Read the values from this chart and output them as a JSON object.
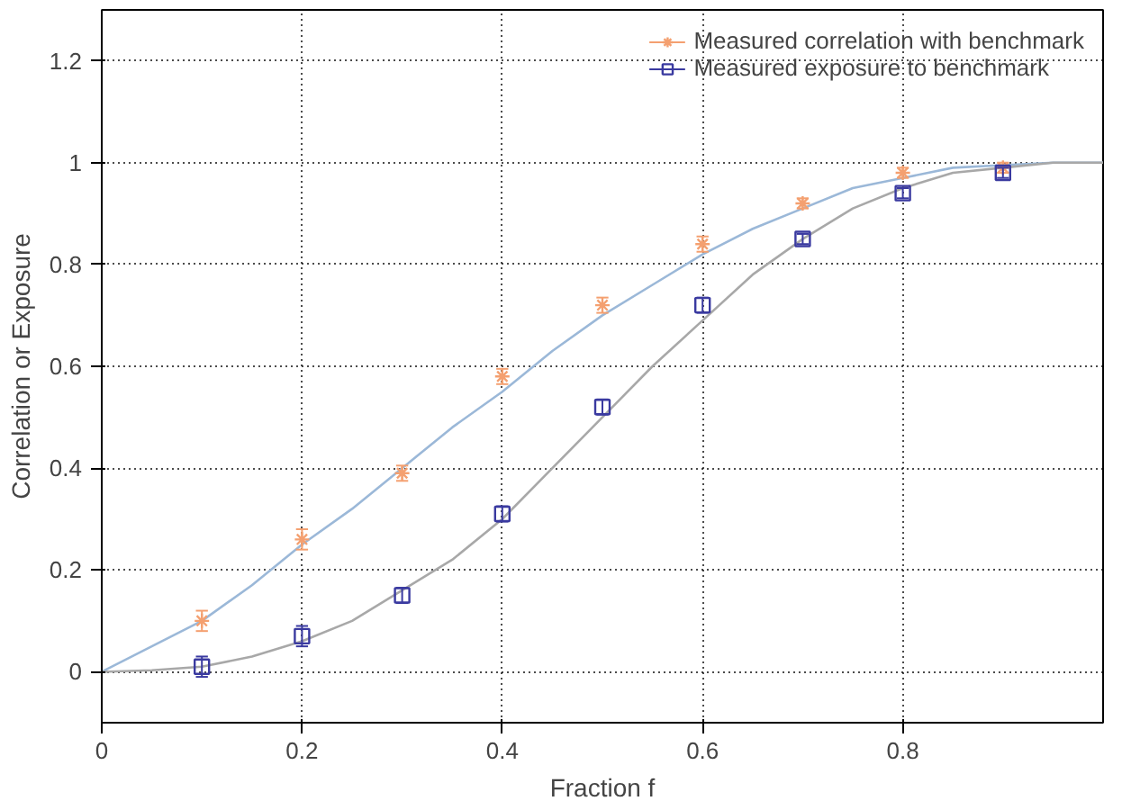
{
  "chart_data": {
    "type": "scatter",
    "xlabel": "Fraction f",
    "ylabel": "Correlation or Exposure",
    "xlim": [
      0,
      1.0
    ],
    "ylim": [
      -0.1,
      1.3
    ],
    "xticks": [
      0,
      0.2,
      0.4,
      0.6,
      0.8
    ],
    "yticks": [
      0,
      0.2,
      0.4,
      0.6,
      0.8,
      1,
      1.2
    ],
    "grid": true,
    "legend": "top right",
    "series": [
      {
        "type": "line",
        "color": "#9bb8d8",
        "x": [
          0,
          0.05,
          0.1,
          0.15,
          0.2,
          0.25,
          0.3,
          0.35,
          0.4,
          0.45,
          0.5,
          0.55,
          0.6,
          0.65,
          0.7,
          0.75,
          0.8,
          0.85,
          0.9,
          0.95,
          1.0
        ],
        "values": [
          0,
          0.05,
          0.1,
          0.17,
          0.25,
          0.32,
          0.4,
          0.48,
          0.55,
          0.63,
          0.7,
          0.76,
          0.82,
          0.87,
          0.91,
          0.95,
          0.97,
          0.99,
          0.995,
          1.0,
          1.0
        ]
      },
      {
        "type": "line",
        "color": "#a8a8a8",
        "x": [
          0,
          0.05,
          0.1,
          0.15,
          0.2,
          0.25,
          0.3,
          0.35,
          0.4,
          0.45,
          0.5,
          0.55,
          0.6,
          0.65,
          0.7,
          0.75,
          0.8,
          0.85,
          0.9,
          0.95,
          1.0
        ],
        "values": [
          0,
          0.003,
          0.01,
          0.03,
          0.06,
          0.1,
          0.16,
          0.22,
          0.3,
          0.4,
          0.5,
          0.6,
          0.69,
          0.78,
          0.85,
          0.91,
          0.95,
          0.98,
          0.99,
          1.0,
          1.0
        ]
      },
      {
        "name": "Measured correlation with benchmark",
        "color": "#f4a070",
        "marker": "cross",
        "x": [
          0.1,
          0.2,
          0.3,
          0.4,
          0.5,
          0.6,
          0.7,
          0.8,
          0.9
        ],
        "values": [
          0.1,
          0.26,
          0.39,
          0.58,
          0.72,
          0.84,
          0.92,
          0.98,
          0.99
        ],
        "errors": [
          0.02,
          0.02,
          0.015,
          0.015,
          0.015,
          0.015,
          0.01,
          0.01,
          0.01
        ]
      },
      {
        "name": "Measured exposure to benchmark",
        "color": "#3a3aa0",
        "marker": "square",
        "x": [
          0.1,
          0.2,
          0.3,
          0.4,
          0.5,
          0.6,
          0.7,
          0.8,
          0.9
        ],
        "values": [
          0.01,
          0.07,
          0.15,
          0.31,
          0.52,
          0.72,
          0.85,
          0.94,
          0.98
        ],
        "errors": [
          0.02,
          0.02,
          0.015,
          0.015,
          0.015,
          0.015,
          0.01,
          0.01,
          0.01
        ]
      }
    ]
  }
}
